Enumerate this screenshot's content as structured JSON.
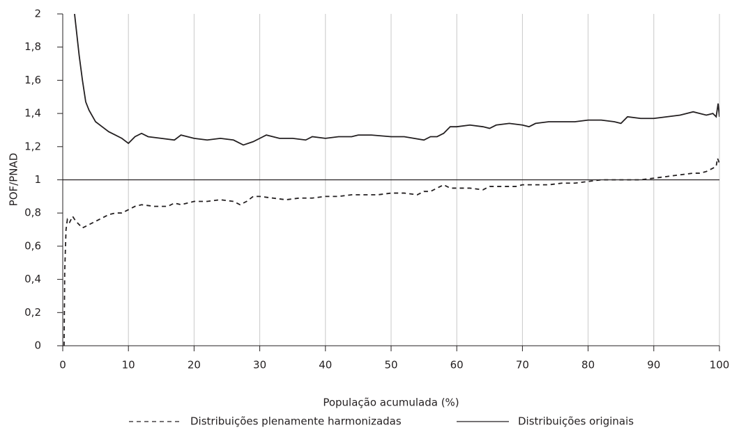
{
  "chart_data": {
    "type": "line",
    "xlabel": "População acumulada (%)",
    "ylabel": "POF/PNAD",
    "xlim": [
      0,
      100
    ],
    "xticks": [
      0,
      10,
      20,
      30,
      40,
      50,
      60,
      70,
      80,
      90,
      100
    ],
    "ylim": [
      0,
      2
    ],
    "yticks": [
      0,
      {
        "value": 0.2,
        "label": "0,2"
      },
      {
        "value": 0.4,
        "label": "0,4"
      },
      {
        "value": 0.6,
        "label": "0,6"
      },
      {
        "value": 0.8,
        "label": "0,8"
      },
      1,
      {
        "value": 1.2,
        "label": "1,2"
      },
      {
        "value": 1.4,
        "label": "1,4"
      },
      {
        "value": 1.6,
        "label": "1,6"
      },
      {
        "value": 1.8,
        "label": "1,8"
      },
      2
    ],
    "grid": "x",
    "reference_line": 1,
    "legend": "bottom",
    "series": [
      {
        "name": "Distribuições plenamente harmonizadas",
        "color": "#231f20",
        "dash": "dashed",
        "x": [
          0.2,
          0.3,
          0.5,
          0.7,
          1,
          1.5,
          2,
          3,
          4,
          5,
          6,
          7,
          8,
          9,
          10,
          11,
          12,
          14,
          16,
          17,
          18,
          19,
          20,
          22,
          24,
          26,
          27,
          28,
          29,
          30,
          32,
          34,
          36,
          38,
          40,
          42,
          44,
          46,
          48,
          50,
          52,
          54,
          55,
          56,
          57,
          58,
          59,
          60,
          62,
          64,
          65,
          67,
          69,
          70,
          72,
          74,
          76,
          78,
          80,
          82,
          84,
          86,
          88,
          90,
          92,
          94,
          96,
          97,
          98,
          99,
          99.5,
          99.7,
          100
        ],
        "values": [
          0,
          0.45,
          0.7,
          0.76,
          0.74,
          0.78,
          0.75,
          0.71,
          0.73,
          0.75,
          0.77,
          0.79,
          0.8,
          0.8,
          0.82,
          0.84,
          0.85,
          0.84,
          0.84,
          0.86,
          0.85,
          0.86,
          0.87,
          0.87,
          0.88,
          0.87,
          0.85,
          0.87,
          0.9,
          0.9,
          0.89,
          0.88,
          0.89,
          0.89,
          0.9,
          0.9,
          0.91,
          0.91,
          0.91,
          0.92,
          0.92,
          0.91,
          0.93,
          0.93,
          0.95,
          0.97,
          0.95,
          0.95,
          0.95,
          0.94,
          0.96,
          0.96,
          0.96,
          0.97,
          0.97,
          0.97,
          0.98,
          0.98,
          0.99,
          1.0,
          1.0,
          1.0,
          1.0,
          1.01,
          1.02,
          1.03,
          1.04,
          1.04,
          1.05,
          1.07,
          1.08,
          1.13,
          1.1
        ]
      },
      {
        "name": "Distribuições originais",
        "color": "#231f20",
        "dash": "solid",
        "x": [
          1.8,
          2.5,
          3,
          3.5,
          4,
          5,
          6,
          7,
          8,
          9,
          10,
          11,
          12,
          13,
          15,
          17,
          18,
          20,
          22,
          24,
          26,
          27.5,
          29,
          30,
          31,
          33,
          35,
          37,
          38,
          40,
          42,
          44,
          45,
          47,
          50,
          52,
          55,
          56,
          57,
          58,
          59,
          60,
          62,
          64,
          65,
          66,
          68,
          70,
          71,
          72,
          74,
          76,
          78,
          80,
          82,
          84,
          85,
          86,
          88,
          90,
          92,
          94,
          95,
          96,
          97,
          98,
          99,
          99.5,
          99.8,
          100
        ],
        "values": [
          2.0,
          1.75,
          1.6,
          1.47,
          1.42,
          1.35,
          1.32,
          1.29,
          1.27,
          1.25,
          1.22,
          1.26,
          1.28,
          1.26,
          1.25,
          1.24,
          1.27,
          1.25,
          1.24,
          1.25,
          1.24,
          1.21,
          1.23,
          1.25,
          1.27,
          1.25,
          1.25,
          1.24,
          1.26,
          1.25,
          1.26,
          1.26,
          1.27,
          1.27,
          1.26,
          1.26,
          1.24,
          1.26,
          1.26,
          1.28,
          1.32,
          1.32,
          1.33,
          1.32,
          1.31,
          1.33,
          1.34,
          1.33,
          1.32,
          1.34,
          1.35,
          1.35,
          1.35,
          1.36,
          1.36,
          1.35,
          1.34,
          1.38,
          1.37,
          1.37,
          1.38,
          1.39,
          1.4,
          1.41,
          1.4,
          1.39,
          1.4,
          1.38,
          1.46,
          1.38
        ]
      }
    ]
  }
}
